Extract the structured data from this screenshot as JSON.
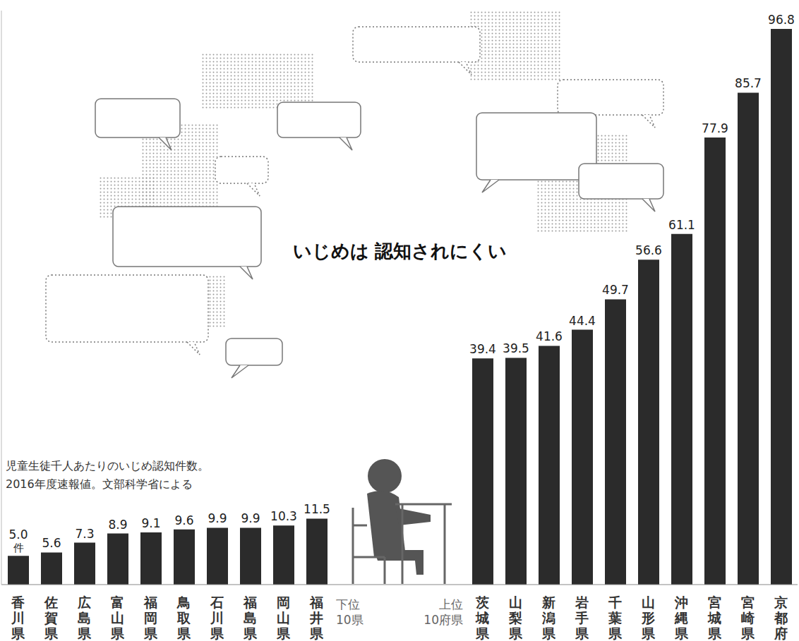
{
  "chart_data": {
    "type": "bar",
    "title": "いじめは\n認知されにくい",
    "subtitle": "児童生徒千人あたりのいじめ認知件数。\n2016年度速報値。文部科学省による",
    "categories": [
      "香川県",
      "佐賀県",
      "広島県",
      "富山県",
      "福岡県",
      "鳥取県",
      "石川県",
      "福島県",
      "岡山県",
      "福井県",
      null,
      null,
      null,
      null,
      "茨城県",
      "山梨県",
      "新潟県",
      "岩手県",
      "千葉県",
      "山形県",
      "沖縄県",
      "宮城県",
      "宮崎県",
      "京都府"
    ],
    "values": [
      5.0,
      5.6,
      7.3,
      8.9,
      9.1,
      9.6,
      9.9,
      9.9,
      10.3,
      11.5,
      null,
      null,
      null,
      null,
      39.4,
      39.5,
      41.6,
      44.4,
      49.7,
      56.6,
      61.1,
      77.9,
      85.7,
      96.8
    ],
    "value_labels": [
      "5.0件",
      "5.6",
      "7.3",
      "8.9",
      "9.1",
      "9.6",
      "9.9",
      "9.9",
      "10.3",
      "11.5",
      null,
      null,
      null,
      null,
      "39.4",
      "39.5",
      "41.6",
      "44.4",
      "49.7",
      "56.6",
      "61.1",
      "77.9",
      "85.7",
      "96.8"
    ],
    "group_labels": [
      "下位10県",
      "上位10府県"
    ],
    "color": "#2b2b2b",
    "ylim": [
      0,
      100
    ],
    "yticks": [],
    "tick_labels": "x",
    "data_labels": true,
    "grid": false
  }
}
